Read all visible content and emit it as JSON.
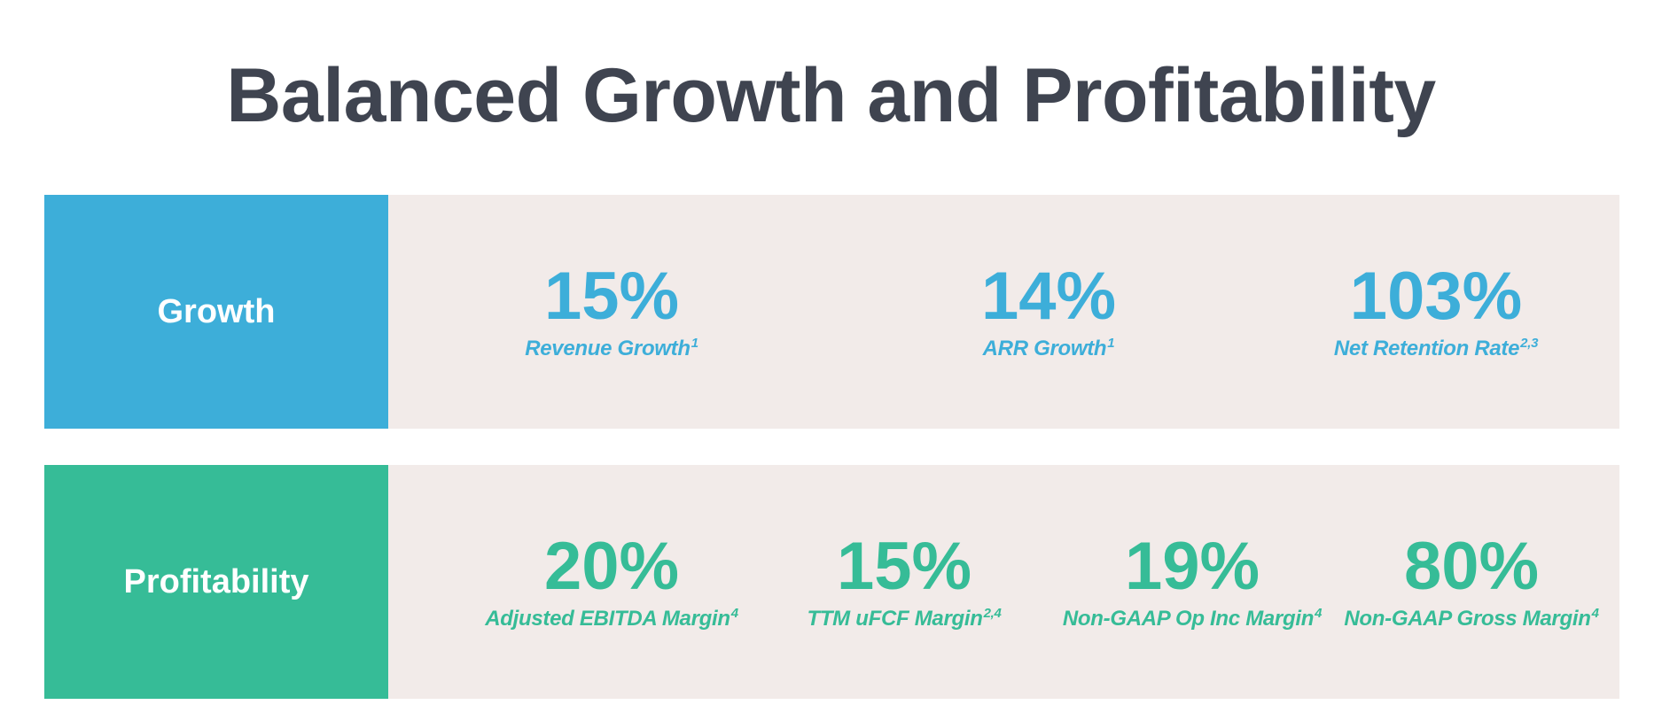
{
  "title": "Balanced Growth and Profitability",
  "colors": {
    "growth": "#3daed9",
    "profitability": "#36bc97",
    "panel": "#f2ebe9",
    "title": "#3f4450"
  },
  "growth": {
    "label": "Growth",
    "metrics": [
      {
        "value": "15%",
        "label": "Revenue Growth",
        "sup": "1"
      },
      {
        "value": "14%",
        "label": "ARR Growth",
        "sup": "1"
      },
      {
        "value": "103%",
        "label": "Net Retention Rate",
        "sup": "2,3"
      }
    ]
  },
  "profitability": {
    "label": "Profitability",
    "metrics": [
      {
        "value": "20%",
        "label": "Adjusted EBITDA Margin",
        "sup": "4"
      },
      {
        "value": "15%",
        "label": "TTM uFCF Margin",
        "sup": "2,4"
      },
      {
        "value": "19%",
        "label": "Non-GAAP Op Inc Margin",
        "sup": "4"
      },
      {
        "value": "80%",
        "label": "Non-GAAP Gross Margin",
        "sup": "4"
      }
    ]
  }
}
